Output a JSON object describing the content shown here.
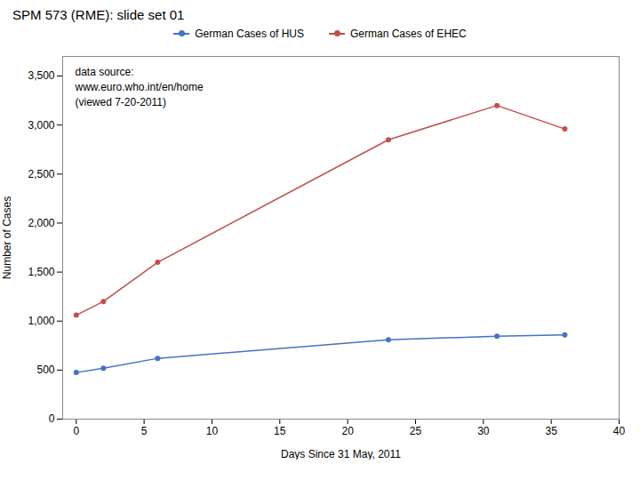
{
  "chart_data": {
    "type": "line",
    "title": "SPM 573 (RME): slide set 01",
    "xlabel": "Days Since 31 May, 2011",
    "ylabel": "Number of Cases",
    "x": [
      0,
      2,
      6,
      23,
      31,
      36
    ],
    "series": [
      {
        "name": "German Cases of HUS",
        "color": "#4472C4",
        "values": [
          475,
          520,
          620,
          810,
          845,
          860
        ]
      },
      {
        "name": "German Cases of EHEC",
        "color": "#C0504D",
        "values": [
          1060,
          1200,
          1600,
          2850,
          3200,
          2960
        ]
      }
    ],
    "annotation": "data source:\nwww.euro.who.int/en/home\n(viewed 7-20-2011)",
    "xlim": [
      -1,
      40
    ],
    "ylim": [
      0,
      3700
    ],
    "xticks": [
      0,
      5,
      10,
      15,
      20,
      25,
      30,
      35,
      40
    ],
    "yticks": [
      0,
      500,
      {
        "value": 1000,
        "label": "1,000"
      },
      {
        "value": 1500,
        "label": "1,500"
      },
      {
        "value": 2000,
        "label": "2,000"
      },
      {
        "value": 2500,
        "label": "2,500"
      },
      {
        "value": 3000,
        "label": "3,000"
      },
      {
        "value": 3500,
        "label": "3,500"
      }
    ],
    "marker": "circle",
    "legend": "top",
    "grid": false
  }
}
